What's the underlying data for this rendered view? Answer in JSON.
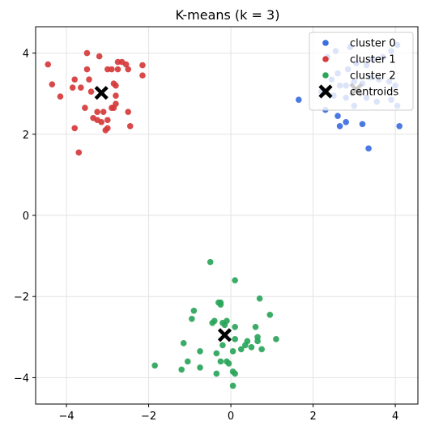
{
  "chart_data": {
    "type": "scatter",
    "title": "K-means (k = 3)",
    "xlabel": "",
    "ylabel": "",
    "xlim": [
      -4.75,
      4.55
    ],
    "ylim": [
      -4.65,
      4.65
    ],
    "xticks": [
      -4,
      -2,
      0,
      2,
      4
    ],
    "yticks": [
      -4,
      -2,
      0,
      2,
      4
    ],
    "grid": true,
    "legend_position": "top-right",
    "series": [
      {
        "name": "cluster 0",
        "color": "#3b6fe0",
        "points": [
          [
            2.35,
            3.9
          ],
          [
            2.55,
            4.05
          ],
          [
            2.6,
            3.5
          ],
          [
            2.85,
            3.6
          ],
          [
            3.05,
            3.75
          ],
          [
            3.3,
            3.7
          ],
          [
            3.45,
            3.85
          ],
          [
            3.7,
            3.9
          ],
          [
            3.9,
            4.05
          ],
          [
            4.05,
            4.2
          ],
          [
            2.9,
            4.15
          ],
          [
            2.45,
            3.35
          ],
          [
            2.65,
            3.2
          ],
          [
            2.8,
            3.2
          ],
          [
            3.0,
            3.3
          ],
          [
            3.2,
            3.25
          ],
          [
            3.4,
            3.4
          ],
          [
            3.6,
            3.35
          ],
          [
            3.85,
            3.3
          ],
          [
            4.0,
            3.2
          ],
          [
            2.2,
            3.05
          ],
          [
            2.5,
            2.95
          ],
          [
            2.8,
            2.9
          ],
          [
            3.0,
            2.7
          ],
          [
            3.3,
            2.9
          ],
          [
            3.55,
            2.8
          ],
          [
            3.9,
            2.85
          ],
          [
            4.05,
            2.7
          ],
          [
            2.3,
            2.6
          ],
          [
            2.6,
            2.45
          ],
          [
            2.65,
            2.2
          ],
          [
            2.8,
            2.3
          ],
          [
            3.2,
            2.25
          ],
          [
            4.1,
            2.2
          ],
          [
            3.35,
            1.65
          ],
          [
            1.65,
            2.85
          ]
        ]
      },
      {
        "name": "cluster 1",
        "color": "#d63a3a",
        "points": [
          [
            -4.45,
            3.72
          ],
          [
            -4.35,
            3.23
          ],
          [
            -4.15,
            2.93
          ],
          [
            -3.85,
            3.15
          ],
          [
            -3.8,
            3.35
          ],
          [
            -3.65,
            3.15
          ],
          [
            -3.8,
            2.15
          ],
          [
            -3.7,
            1.55
          ],
          [
            -3.5,
            4.0
          ],
          [
            -3.5,
            3.6
          ],
          [
            -3.45,
            3.35
          ],
          [
            -3.4,
            3.05
          ],
          [
            -3.55,
            2.65
          ],
          [
            -3.35,
            2.4
          ],
          [
            -3.25,
            2.55
          ],
          [
            -3.25,
            2.35
          ],
          [
            -3.15,
            2.3
          ],
          [
            -3.2,
            3.92
          ],
          [
            -3.1,
            2.55
          ],
          [
            -3.05,
            2.1
          ],
          [
            -3.0,
            2.15
          ],
          [
            -3.0,
            2.35
          ],
          [
            -3.0,
            3.6
          ],
          [
            -2.9,
            3.6
          ],
          [
            -2.85,
            3.25
          ],
          [
            -2.8,
            3.2
          ],
          [
            -2.8,
            2.95
          ],
          [
            -2.8,
            2.75
          ],
          [
            -2.75,
            3.6
          ],
          [
            -2.75,
            3.78
          ],
          [
            -2.65,
            3.78
          ],
          [
            -2.55,
            3.72
          ],
          [
            -2.5,
            3.6
          ],
          [
            -2.5,
            2.55
          ],
          [
            -2.45,
            2.2
          ],
          [
            -2.15,
            3.7
          ],
          [
            -2.15,
            3.45
          ],
          [
            -2.9,
            2.65
          ],
          [
            -2.85,
            2.65
          ]
        ]
      },
      {
        "name": "cluster 2",
        "color": "#2aa55a",
        "points": [
          [
            -1.85,
            -3.7
          ],
          [
            -1.2,
            -3.8
          ],
          [
            -1.15,
            -3.15
          ],
          [
            -1.05,
            -3.6
          ],
          [
            -0.95,
            -2.55
          ],
          [
            -0.9,
            -2.35
          ],
          [
            -0.75,
            -3.35
          ],
          [
            -0.75,
            -3.75
          ],
          [
            -0.5,
            -1.15
          ],
          [
            -0.45,
            -2.65
          ],
          [
            -0.4,
            -2.6
          ],
          [
            -0.35,
            -3.4
          ],
          [
            -0.35,
            -3.9
          ],
          [
            -0.3,
            -2.15
          ],
          [
            -0.25,
            -2.2
          ],
          [
            -0.25,
            -2.15
          ],
          [
            -0.25,
            -3.6
          ],
          [
            -0.2,
            -3.2
          ],
          [
            -0.2,
            -2.65
          ],
          [
            -0.15,
            -2.7
          ],
          [
            -0.1,
            -2.6
          ],
          [
            -0.1,
            -3.6
          ],
          [
            -0.05,
            -3.65
          ],
          [
            0.05,
            -3.35
          ],
          [
            0.05,
            -3.85
          ],
          [
            0.05,
            -4.2
          ],
          [
            0.1,
            -3.05
          ],
          [
            0.1,
            -2.75
          ],
          [
            0.1,
            -3.9
          ],
          [
            0.1,
            -1.6
          ],
          [
            0.25,
            -3.3
          ],
          [
            0.35,
            -3.2
          ],
          [
            0.4,
            -3.1
          ],
          [
            0.5,
            -3.25
          ],
          [
            0.6,
            -2.75
          ],
          [
            0.65,
            -3.1
          ],
          [
            0.65,
            -3.0
          ],
          [
            0.7,
            -2.05
          ],
          [
            0.75,
            -3.3
          ],
          [
            0.95,
            -2.45
          ],
          [
            1.1,
            -3.05
          ]
        ]
      },
      {
        "name": "centroids",
        "color": "#000000",
        "marker": "x",
        "points": [
          [
            3.05,
            3.1
          ],
          [
            -3.15,
            3.02
          ],
          [
            -0.15,
            -2.95
          ]
        ]
      }
    ]
  }
}
